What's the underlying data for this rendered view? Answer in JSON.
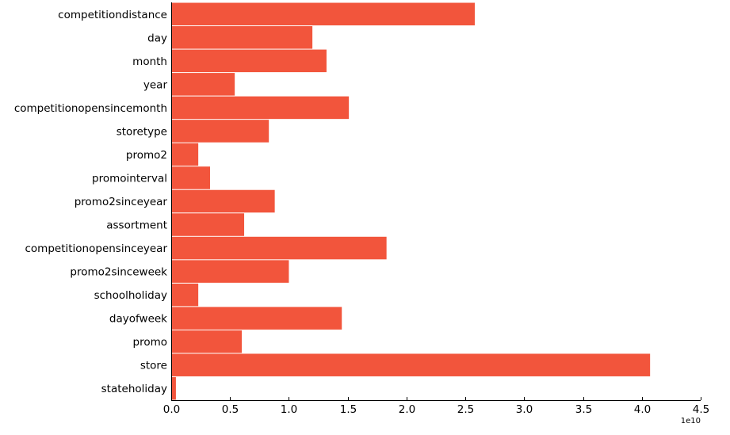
{
  "chart_data": {
    "type": "bar",
    "orientation": "horizontal",
    "bar_color": "#F2553C",
    "axis_color": "#000000",
    "categories": [
      "competitiondistance",
      "day",
      "month",
      "year",
      "competitionopensincemonth",
      "storetype",
      "promo2",
      "promointerval",
      "promo2sinceyear",
      "assortment",
      "competitionopensinceyear",
      "promo2sinceweek",
      "schoolholiday",
      "dayofweek",
      "promo",
      "store",
      "stateholiday"
    ],
    "values": [
      25800000000.0,
      12000000000.0,
      13200000000.0,
      5400000000.0,
      15100000000.0,
      8300000000.0,
      2300000000.0,
      3300000000.0,
      8800000000.0,
      6200000000.0,
      18300000000.0,
      10000000000.0,
      2300000000.0,
      14500000000.0,
      6000000000.0,
      40700000000.0,
      400000000.0
    ],
    "xlim": [
      0,
      45000000000
    ],
    "xticks": [
      "0.0",
      "0.5",
      "1.0",
      "1.5",
      "2.0",
      "2.5",
      "3.0",
      "3.5",
      "4.0",
      "4.5"
    ],
    "x_offset_label": "1e10",
    "grid": false,
    "legend": "none"
  }
}
